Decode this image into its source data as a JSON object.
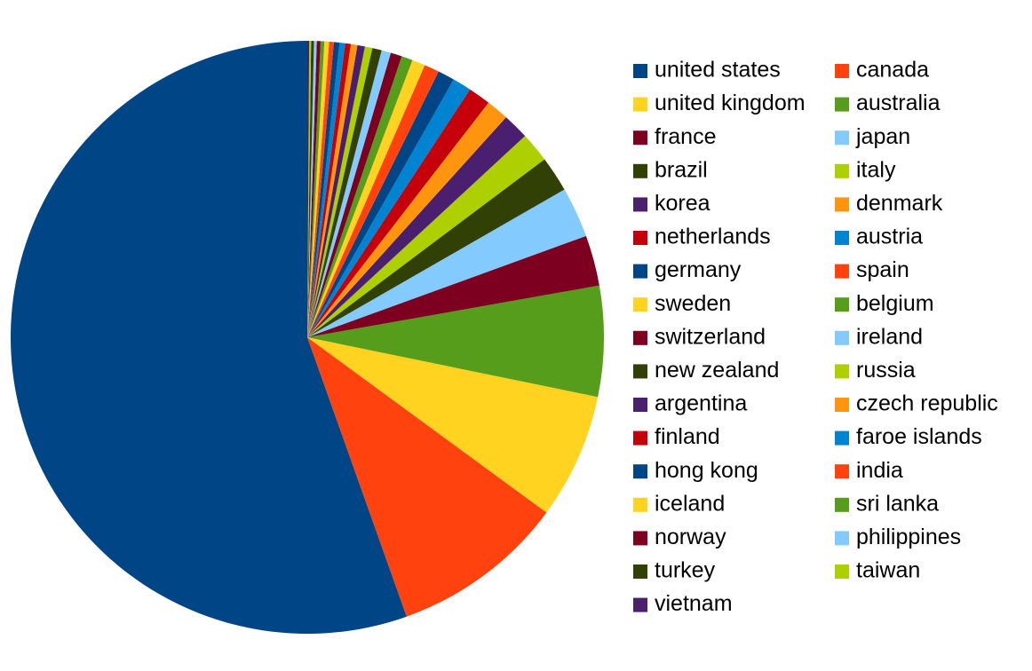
{
  "chart_data": {
    "type": "pie",
    "categories": [
      "united states",
      "canada",
      "united kingdom",
      "australia",
      "france",
      "japan",
      "brazil",
      "italy",
      "korea",
      "denmark",
      "netherlands",
      "austria",
      "germany",
      "spain",
      "sweden",
      "belgium",
      "switzerland",
      "ireland",
      "new zealand",
      "russia",
      "argentina",
      "czech republic",
      "finland",
      "faroe islands",
      "hong kong",
      "india",
      "iceland",
      "sri lanka",
      "norway",
      "philippines",
      "turkey",
      "taiwan",
      "vietnam"
    ],
    "values": [
      54.3,
      9.3,
      6.7,
      5.9,
      2.7,
      2.7,
      1.9,
      1.6,
      1.4,
      1.2,
      1.2,
      1.0,
      0.9,
      0.8,
      0.7,
      0.6,
      0.6,
      0.5,
      0.5,
      0.4,
      0.4,
      0.35,
      0.3,
      0.3,
      0.3,
      0.25,
      0.25,
      0.2,
      0.2,
      0.15,
      0.15,
      0.1,
      0.1
    ],
    "colors": [
      "#004586",
      "#ff420e",
      "#ffd320",
      "#579d1c",
      "#7e0021",
      "#83caff",
      "#314004",
      "#aecf00",
      "#4b1f6f",
      "#ff950e",
      "#c5000b",
      "#0084d1"
    ],
    "legend": "right"
  }
}
